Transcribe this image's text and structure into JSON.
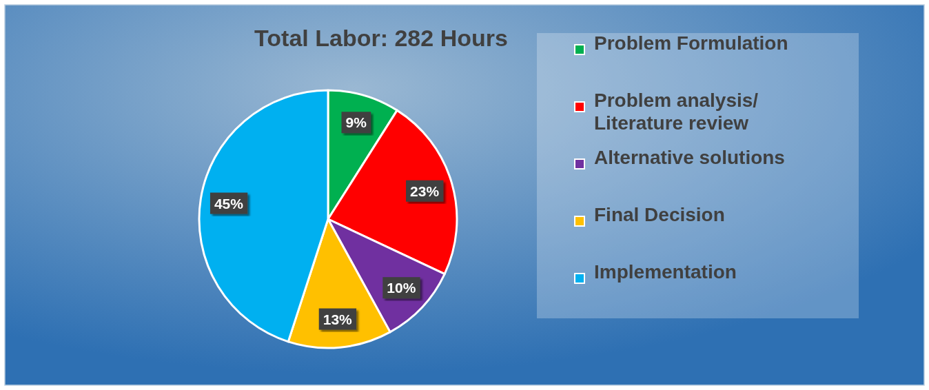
{
  "chart_data": {
    "type": "pie",
    "title": "Total Labor: 282 Hours",
    "categories": [
      "Problem Formulation",
      "Problem analysis/ Literature review",
      "Alternative solutions",
      "Final Decision",
      "Implementation"
    ],
    "values": [
      9,
      23,
      10,
      13,
      45
    ],
    "colors": [
      "#00b050",
      "#ff0000",
      "#7030a0",
      "#ffc000",
      "#00b0f0"
    ],
    "value_labels": [
      "9%",
      "23%",
      "10%",
      "13%",
      "45%"
    ],
    "legend": "right"
  }
}
